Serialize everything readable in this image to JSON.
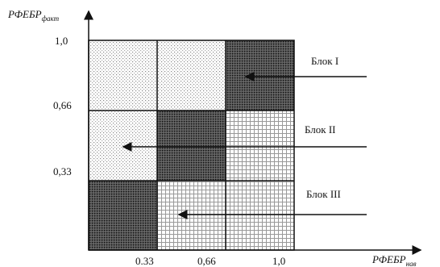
{
  "axes": {
    "y_label": {
      "text": "РФЕБР",
      "sub": "факт"
    },
    "x_label": {
      "text": "РФЕБР",
      "sub": "нав"
    },
    "y_ticks": [
      "1,0",
      "0,66",
      "0,33"
    ],
    "x_ticks": [
      "0.33",
      "0,66",
      "1,0"
    ]
  },
  "blocks": [
    "Блок I",
    "Блок II",
    "Блок III"
  ]
}
